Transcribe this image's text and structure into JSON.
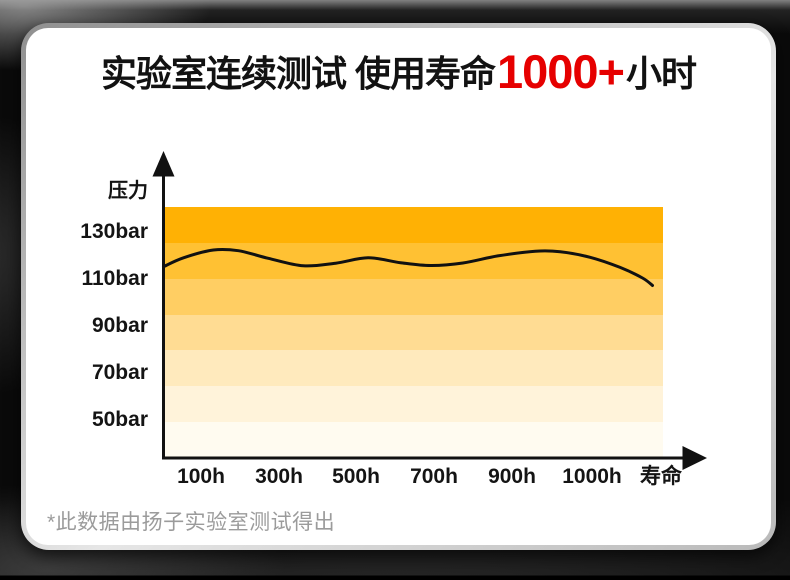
{
  "title": {
    "prefix": "实验室连续测试 使用寿命",
    "highlight": "1000+",
    "suffix": "小时",
    "highlight_color": "#e60000"
  },
  "footnote": "*此数据由扬子实验室测试得出",
  "chart_data": {
    "type": "line",
    "title": "实验室连续测试 使用寿命1000+小时",
    "ylabel": "压力",
    "xlabel": "寿命",
    "y_ticks": [
      "130bar",
      "110bar",
      "90bar",
      "70bar",
      "50bar"
    ],
    "y_tick_values_bar": [
      130,
      110,
      90,
      70,
      50
    ],
    "x_ticks": [
      "100h",
      "300h",
      "500h",
      "700h",
      "900h",
      "1000h"
    ],
    "x_tick_values_h": [
      100,
      300,
      500,
      700,
      900,
      1000
    ],
    "x_axis_end_label": "寿命",
    "ylim_bar": [
      50,
      140
    ],
    "grid": false,
    "legend": "none",
    "line_color": "#111111",
    "axis_color": "#111111",
    "band_colors": [
      "#ffb104",
      "#ffc133",
      "#ffce63",
      "#ffdc93",
      "#ffeabd",
      "#fff3da",
      "#fffbf0"
    ],
    "series": [
      {
        "name": "压力曲线",
        "points_t_bar": [
          {
            "t": 0.0,
            "bar": 114.8
          },
          {
            "t": 0.04,
            "bar": 118.6
          },
          {
            "t": 0.1,
            "bar": 121.9
          },
          {
            "t": 0.15,
            "bar": 121.6
          },
          {
            "t": 0.21,
            "bar": 118.4
          },
          {
            "t": 0.28,
            "bar": 115.2
          },
          {
            "t": 0.345,
            "bar": 116.3
          },
          {
            "t": 0.41,
            "bar": 118.6
          },
          {
            "t": 0.475,
            "bar": 116.5
          },
          {
            "t": 0.535,
            "bar": 115.3
          },
          {
            "t": 0.6,
            "bar": 116.4
          },
          {
            "t": 0.67,
            "bar": 119.4
          },
          {
            "t": 0.745,
            "bar": 121.4
          },
          {
            "t": 0.795,
            "bar": 121.2
          },
          {
            "t": 0.855,
            "bar": 118.8
          },
          {
            "t": 0.915,
            "bar": 114.5
          },
          {
            "t": 0.96,
            "bar": 110.0
          },
          {
            "t": 0.98,
            "bar": 106.8
          }
        ]
      }
    ]
  }
}
